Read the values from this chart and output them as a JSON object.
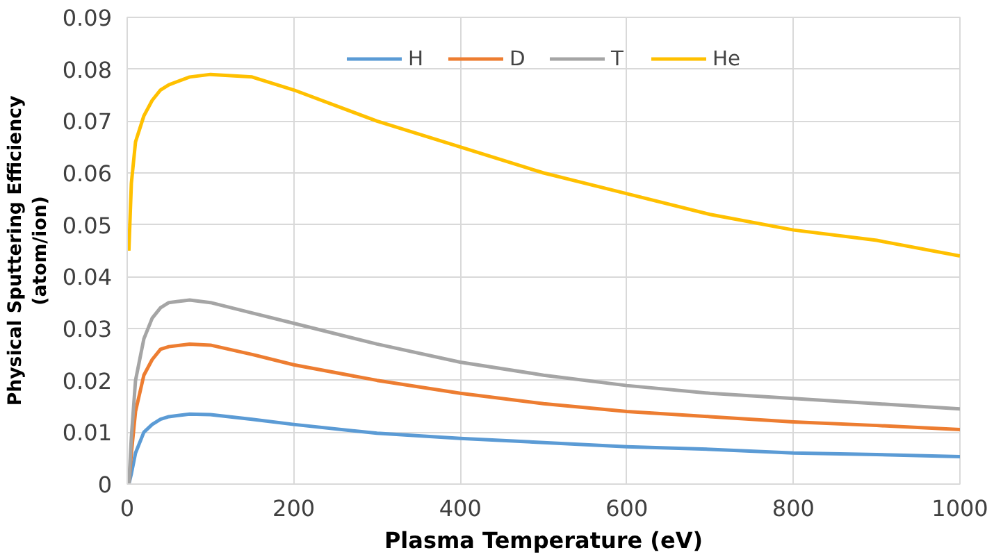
{
  "chart_data": {
    "type": "line",
    "xlabel": "Plasma Temperature (eV)",
    "ylabel": "Physical Sputtering Efficiency\n(atom/ion)",
    "xlim": [
      0,
      1000
    ],
    "xticks": [
      0,
      200,
      400,
      600,
      800,
      1000
    ],
    "ylim": [
      0,
      0.09
    ],
    "yticks": [
      0,
      0.01,
      0.02,
      0.03,
      0.04,
      0.05,
      0.06,
      0.07,
      0.08,
      0.09
    ],
    "grid": true,
    "legend": "top",
    "marker": "none",
    "line_style": "solid",
    "x": [
      2,
      5,
      10,
      20,
      30,
      40,
      50,
      75,
      100,
      150,
      200,
      300,
      400,
      500,
      600,
      700,
      800,
      900,
      1000
    ],
    "series": [
      {
        "name": "H",
        "color": "#5b9bd5",
        "values": [
          0,
          0.002,
          0.006,
          0.01,
          0.0115,
          0.0125,
          0.013,
          0.0135,
          0.0134,
          0.0125,
          0.0115,
          0.0098,
          0.0088,
          0.008,
          0.0072,
          0.0067,
          0.006,
          0.0057,
          0.0053
        ]
      },
      {
        "name": "D",
        "color": "#ed7d31",
        "values": [
          0,
          0.006,
          0.014,
          0.021,
          0.024,
          0.026,
          0.0265,
          0.027,
          0.0268,
          0.025,
          0.023,
          0.02,
          0.0175,
          0.0155,
          0.014,
          0.013,
          0.012,
          0.0113,
          0.0105
        ]
      },
      {
        "name": "T",
        "color": "#a5a5a5",
        "values": [
          0,
          0.009,
          0.02,
          0.028,
          0.032,
          0.034,
          0.035,
          0.0355,
          0.035,
          0.033,
          0.031,
          0.027,
          0.0235,
          0.021,
          0.019,
          0.0175,
          0.0165,
          0.0155,
          0.0145
        ]
      },
      {
        "name": "He",
        "color": "#ffc000",
        "values": [
          0.045,
          0.058,
          0.066,
          0.071,
          0.074,
          0.076,
          0.077,
          0.0785,
          0.079,
          0.0785,
          0.076,
          0.07,
          0.065,
          0.06,
          0.056,
          0.052,
          0.049,
          0.047,
          0.044
        ]
      }
    ]
  }
}
